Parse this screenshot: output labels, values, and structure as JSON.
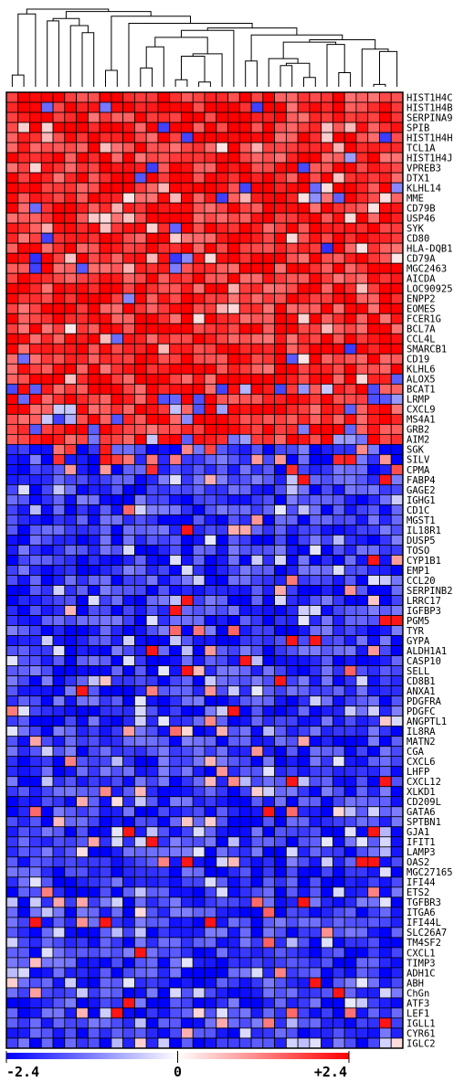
{
  "chart_data": {
    "type": "heatmap",
    "rows": [
      "HIST1H4C",
      "HIST1H4B",
      "SERPINA9",
      "SPIB",
      "HIST1H4H",
      "TCL1A",
      "HIST1H4J",
      "VPREB3",
      "DTX1",
      "KLHL14",
      "MME",
      "CD79B",
      "USP46",
      "SYK",
      "CD80",
      "HLA-DQB1",
      "CD79A",
      "MGC2463",
      "AICDA",
      "LOC90925",
      "ENPP2",
      "EOMES",
      "FCER1G",
      "BCL7A",
      "CCL4L",
      "SMARCB1",
      "CD19",
      "KLHL6",
      "ALOX5",
      "BCAT1",
      "LRMP",
      "CXCL9",
      "MS4A1",
      "GRB2",
      "AIM2",
      "SGK",
      "SILV",
      "CPMA",
      "FABP4",
      "GAGE2",
      "IGHG1",
      "CD1C",
      "MGST1",
      "IL18R1",
      "DUSP5",
      "TOSO",
      "CYP1B1",
      "EMP1",
      "CCL20",
      "SERPINB2",
      "LRRC17",
      "IGFBP3",
      "PGM5",
      "TYR",
      "GYPA",
      "ALDH1A1",
      "CASP10",
      "SELL",
      "CD8B1",
      "ANXA1",
      "PDGFRA",
      "PDGFC",
      "ANGPTL1",
      "IL8RA",
      "MATN2",
      "CGA",
      "CXCL6",
      "LHFP",
      "CXCL12",
      "XLKD1",
      "CD209L",
      "GATA6",
      "SPTBN1",
      "GJA1",
      "IFIT1",
      "LAMP3",
      "OAS2",
      "MGC27165",
      "IFI44",
      "ETS2",
      "TGFBR3",
      "ITGA6",
      "IFI44L",
      "SLC26A7",
      "TM4SF2",
      "CXCL1",
      "TIMP3",
      "ADH1C",
      "ABH",
      "ChGn",
      "ATF3",
      "LEF1",
      "IGLL1",
      "CYR61",
      "IGLC2"
    ],
    "n_columns": 34,
    "up_regulated_rows": 35,
    "color_scale": {
      "min": -2.4,
      "mid": 0,
      "max": 2.4,
      "min_color": "#0000ff",
      "mid_color": "#ffffff",
      "max_color": "#ff0000"
    },
    "colorbar_labels": [
      "-2.4",
      "0",
      "+2.4"
    ],
    "dendrogram": "column clustering tree above heatmap"
  }
}
